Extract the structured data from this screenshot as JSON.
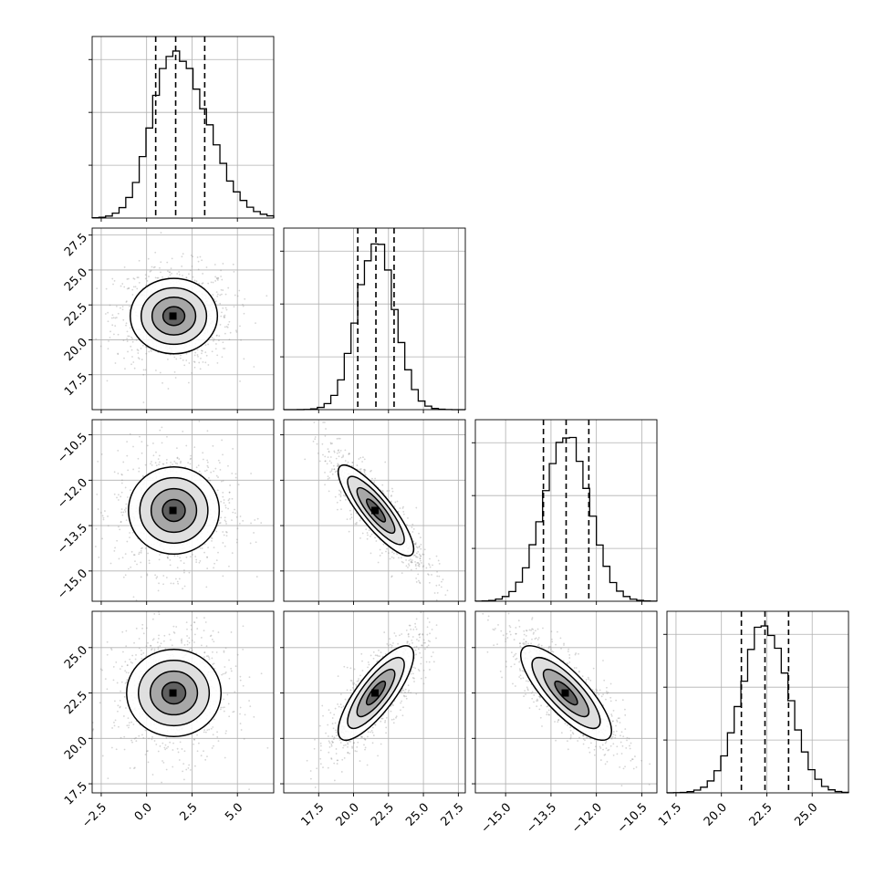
{
  "chart_data": {
    "type": "corner",
    "title": "",
    "parameters": [
      {
        "index": 0,
        "range": [
          -3.0,
          7.0
        ],
        "ticks": [
          -2.5,
          0.0,
          2.5,
          5.0
        ],
        "tick_labels": [
          "−2.5",
          "0.0",
          "2.5",
          "5.0"
        ],
        "quantiles": [
          0.5,
          1.6,
          3.2
        ],
        "peak": 1.5,
        "sigma": 1.2,
        "bins": 27,
        "hist_max": 1.0
      },
      {
        "index": 1,
        "range": [
          15.0,
          28.0
        ],
        "ticks": [
          17.5,
          20.0,
          22.5,
          25.0,
          27.5
        ],
        "tick_labels": [
          "17.5",
          "20.0",
          "22.5",
          "25.0",
          "27.5"
        ],
        "quantiles": [
          20.3,
          21.6,
          22.9
        ],
        "peak": 21.6,
        "sigma": 1.35,
        "bins": 27,
        "hist_max": 1.0
      },
      {
        "index": 2,
        "range": [
          -16.0,
          -10.0
        ],
        "ticks": [
          -15.0,
          -13.5,
          -12.0,
          -10.5
        ],
        "tick_labels": [
          "−15.0",
          "−13.5",
          "−12.0",
          "−10.5"
        ],
        "quantiles": [
          -13.75,
          -13.0,
          -12.25
        ],
        "peak": -13.0,
        "sigma": 0.75,
        "bins": 27,
        "hist_max": 1.0
      },
      {
        "index": 3,
        "range": [
          17.0,
          27.0
        ],
        "ticks": [
          17.5,
          20.0,
          22.5,
          25.0
        ],
        "tick_labels": [
          "17.5",
          "20.0",
          "22.5",
          "25.0"
        ],
        "quantiles": [
          21.1,
          22.4,
          23.7
        ],
        "peak": 22.4,
        "sigma": 1.3,
        "bins": 27,
        "hist_max": 1.0
      }
    ],
    "pairs": [
      {
        "row": 1,
        "col": 0,
        "mean": [
          1.5,
          21.7
        ],
        "sigma": [
          1.2,
          1.35
        ],
        "correlation": 0.0
      },
      {
        "row": 2,
        "col": 0,
        "mean": [
          1.5,
          -13.0
        ],
        "sigma": [
          1.2,
          0.75
        ],
        "correlation": 0.0
      },
      {
        "row": 2,
        "col": 1,
        "mean": [
          21.6,
          -13.0
        ],
        "sigma": [
          1.35,
          0.75
        ],
        "correlation": -0.85
      },
      {
        "row": 3,
        "col": 0,
        "mean": [
          1.5,
          22.5
        ],
        "sigma": [
          1.2,
          1.3
        ],
        "correlation": 0.0
      },
      {
        "row": 3,
        "col": 1,
        "mean": [
          21.6,
          22.5
        ],
        "sigma": [
          1.35,
          1.3
        ],
        "correlation": 0.8
      },
      {
        "row": 3,
        "col": 2,
        "mean": [
          -13.0,
          22.5
        ],
        "sigma": [
          0.75,
          1.3
        ],
        "correlation": -0.8
      }
    ],
    "contour_levels_sigma": [
      0.5,
      1.0,
      1.5,
      2.0
    ],
    "grid": true,
    "colors": {
      "line": "#000000",
      "grid": "#b0b0b0",
      "points": "#888888",
      "density": "#000000"
    }
  }
}
